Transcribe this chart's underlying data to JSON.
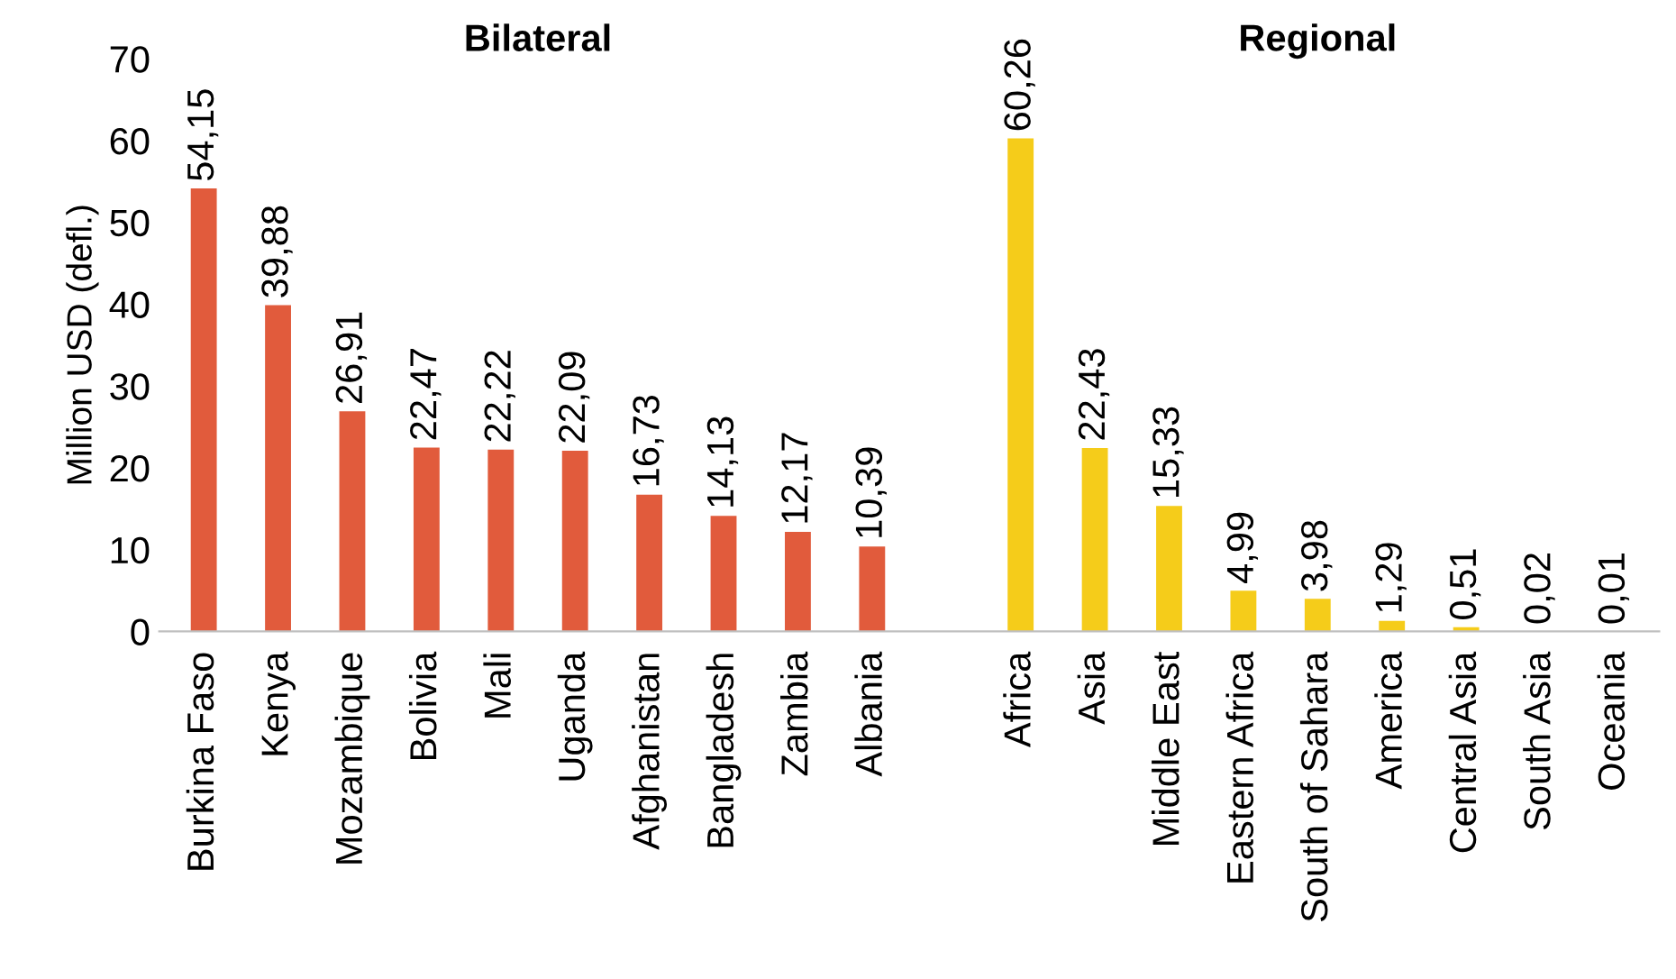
{
  "chart_data": {
    "type": "bar",
    "ylabel": "Million USD (defl.)",
    "annotations": [
      "Bilateral",
      "Regional"
    ],
    "categories": [
      "Burkina Faso",
      "Kenya",
      "Mozambique",
      "Bolivia",
      "Mali",
      "Uganda",
      "Afghanistan",
      "Bangladesh",
      "Zambia",
      "Albania",
      null,
      "Africa",
      "Asia",
      "Middle East",
      "Eastern Africa",
      "South of Sahara",
      "America",
      "Central Asia",
      "South Asia",
      "Oceania"
    ],
    "series": [
      {
        "color": "#e15b3c",
        "values": [
          54.15,
          39.88,
          26.91,
          22.47,
          22.22,
          22.09,
          16.73,
          14.13,
          12.17,
          10.39,
          null,
          null,
          null,
          null,
          null,
          null,
          null,
          null,
          null,
          null
        ],
        "value_labels": [
          "54,15",
          "39,88",
          "26,91",
          "22,47",
          "22,22",
          "22,09",
          "16,73",
          "14,13",
          "12,17",
          "10,39",
          null,
          null,
          null,
          null,
          null,
          null,
          null,
          null,
          null,
          null
        ]
      },
      {
        "color": "#f5cc1a",
        "values": [
          null,
          null,
          null,
          null,
          null,
          null,
          null,
          null,
          null,
          null,
          null,
          60.26,
          22.43,
          15.33,
          4.99,
          3.98,
          1.29,
          0.51,
          0.02,
          0.01
        ],
        "value_labels": [
          null,
          null,
          null,
          null,
          null,
          null,
          null,
          null,
          null,
          null,
          null,
          "60,26",
          "22,43",
          "15,33",
          "4,99",
          "3,98",
          "1,29",
          "0,51",
          "0,02",
          "0,01"
        ]
      }
    ],
    "ylim": [
      0,
      70
    ],
    "yticks": [
      0,
      10,
      20,
      30,
      40,
      50,
      60,
      70
    ],
    "grid": false,
    "legend": false
  }
}
